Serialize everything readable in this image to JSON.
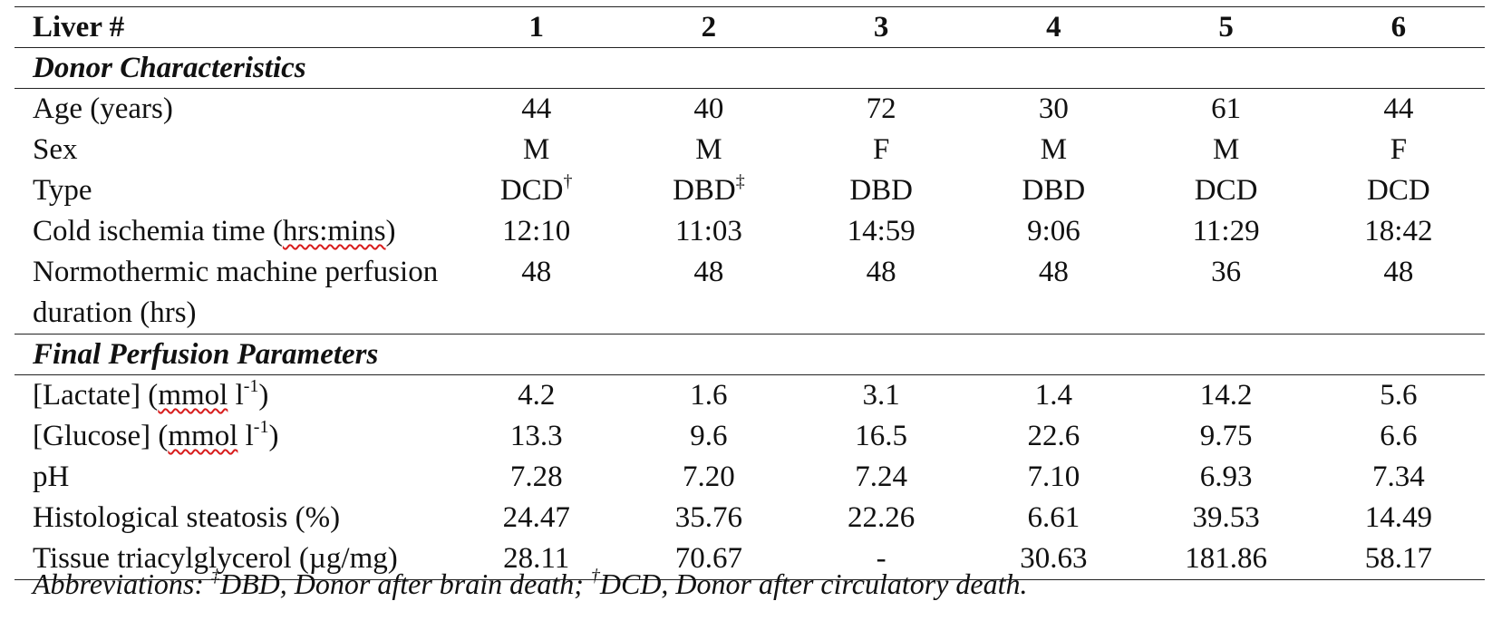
{
  "header": {
    "label": "Liver #",
    "columns": [
      "1",
      "2",
      "3",
      "4",
      "5",
      "6"
    ]
  },
  "sections": {
    "donor": {
      "title": "Donor Characteristics",
      "age": {
        "label": "Age (years)",
        "values": [
          "44",
          "40",
          "72",
          "30",
          "61",
          "44"
        ]
      },
      "sex": {
        "label": "Sex",
        "values": [
          "M",
          "M",
          "F",
          "M",
          "M",
          "F"
        ]
      },
      "type": {
        "label": "Type",
        "values": [
          "DCD",
          "DBD",
          "DBD",
          "DBD",
          "DCD",
          "DCD"
        ],
        "marks": [
          "†",
          "‡",
          "",
          "",
          "",
          ""
        ]
      },
      "cold": {
        "label_before": "Cold ischemia time (",
        "label_flagged": "hrs:mins",
        "label_after": ")",
        "values": [
          "12:10",
          "11:03",
          "14:59",
          "9:06",
          "11:29",
          "18:42"
        ]
      },
      "nmp": {
        "label": "Normothermic machine perfusion duration (hrs)",
        "values": [
          "48",
          "48",
          "48",
          "48",
          "36",
          "48"
        ]
      }
    },
    "final": {
      "title": "Final Perfusion Parameters",
      "lactate": {
        "label_before": "[Lactate] (",
        "label_flagged": "mmol",
        "label_unit": " l",
        "label_sup": "-1",
        "label_after": ")",
        "values": [
          "4.2",
          "1.6",
          "3.1",
          "1.4",
          "14.2",
          "5.6"
        ]
      },
      "glucose": {
        "label_before": "[Glucose] (",
        "label_flagged": "mmol",
        "label_unit": " l",
        "label_sup": "-1",
        "label_after": ")",
        "values": [
          "13.3",
          "9.6",
          "16.5",
          "22.6",
          "9.75",
          "6.6"
        ]
      },
      "ph": {
        "label": "pH",
        "values": [
          "7.28",
          "7.20",
          "7.24",
          "7.10",
          "6.93",
          "7.34"
        ]
      },
      "steatosis": {
        "label": "Histological steatosis (%)",
        "values": [
          "24.47",
          "35.76",
          "22.26",
          "6.61",
          "39.53",
          "14.49"
        ]
      },
      "tag": {
        "label": "Tissue triacylglycerol (µg/mg)",
        "values": [
          "28.11",
          "70.67",
          "-",
          "30.63",
          "181.86",
          "58.17"
        ]
      }
    }
  },
  "footnote": {
    "prefix": "Abbreviations: ",
    "mark1": "‡",
    "text1": "DBD, Donor after brain death; ",
    "mark2": "†",
    "text2": "DCD, Donor after circulatory death."
  },
  "colors": {
    "spellcheck_underline": "#d81c1c",
    "rule": "#222222"
  }
}
